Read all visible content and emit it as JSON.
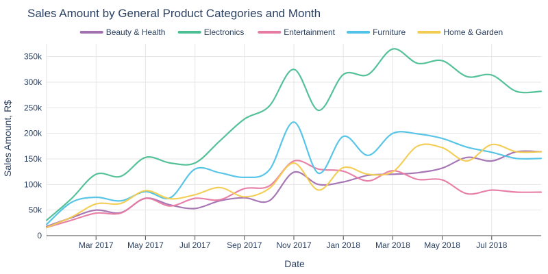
{
  "chart_data": {
    "type": "line",
    "title": "Sales Amount by General Product Categories and Month",
    "xlabel": "Date",
    "ylabel": "Sales Amount, R$",
    "ylim": [
      0,
      375000
    ],
    "grid": true,
    "legend_position": "top",
    "x": [
      "2017-01",
      "2017-02",
      "2017-03",
      "2017-04",
      "2017-05",
      "2017-06",
      "2017-07",
      "2017-08",
      "2017-09",
      "2017-10",
      "2017-11",
      "2017-12",
      "2018-01",
      "2018-02",
      "2018-03",
      "2018-04",
      "2018-05",
      "2018-06",
      "2018-07",
      "2018-08",
      "2018-09"
    ],
    "x_ticks": [
      {
        "value": "2017-03",
        "label": "Mar 2017"
      },
      {
        "value": "2017-05",
        "label": "May 2017"
      },
      {
        "value": "2017-07",
        "label": "Jul 2017"
      },
      {
        "value": "2017-09",
        "label": "Sep 2017"
      },
      {
        "value": "2017-11",
        "label": "Nov 2017"
      },
      {
        "value": "2018-01",
        "label": "Jan 2018"
      },
      {
        "value": "2018-03",
        "label": "Mar 2018"
      },
      {
        "value": "2018-05",
        "label": "May 2018"
      },
      {
        "value": "2018-07",
        "label": "Jul 2018"
      }
    ],
    "y_ticks": [
      {
        "value": 0,
        "label": "0"
      },
      {
        "value": 50000,
        "label": "50k"
      },
      {
        "value": 100000,
        "label": "100k"
      },
      {
        "value": 150000,
        "label": "150k"
      },
      {
        "value": 200000,
        "label": "200k"
      },
      {
        "value": 250000,
        "label": "250k"
      },
      {
        "value": 300000,
        "label": "300k"
      },
      {
        "value": 350000,
        "label": "350k"
      }
    ],
    "series": [
      {
        "name": "Beauty & Health",
        "color": "#a26fb1",
        "values": [
          18000,
          35000,
          50000,
          45000,
          73000,
          60000,
          53000,
          68000,
          74000,
          68000,
          124000,
          100000,
          105000,
          118000,
          120000,
          123000,
          132000,
          153000,
          146000,
          164000,
          164000
        ]
      },
      {
        "name": "Electronics",
        "color": "#4cbe94",
        "values": [
          30000,
          72000,
          120000,
          116000,
          153000,
          142000,
          142000,
          185000,
          228000,
          253000,
          325000,
          245000,
          315000,
          315000,
          365000,
          337000,
          342000,
          311000,
          314000,
          282000,
          282000
        ]
      },
      {
        "name": "Entertainment",
        "color": "#e67aa2",
        "values": [
          16000,
          30000,
          44000,
          44000,
          73000,
          58000,
          73000,
          70000,
          92000,
          97000,
          146000,
          130000,
          126000,
          107000,
          127000,
          110000,
          109000,
          82000,
          89000,
          85000,
          85000
        ]
      },
      {
        "name": "Furniture",
        "color": "#4fc2e6",
        "values": [
          22000,
          65000,
          75000,
          68000,
          86000,
          74000,
          130000,
          123000,
          114000,
          128000,
          222000,
          122000,
          194000,
          157000,
          200000,
          199000,
          190000,
          173000,
          163000,
          151000,
          151000
        ]
      },
      {
        "name": "Home & Garden",
        "color": "#f2cc50",
        "values": [
          16000,
          36000,
          62000,
          63000,
          88000,
          72000,
          80000,
          94000,
          76000,
          92000,
          142000,
          89000,
          133000,
          120000,
          125000,
          175000,
          172000,
          146000,
          178000,
          164000,
          164000
        ]
      }
    ]
  }
}
